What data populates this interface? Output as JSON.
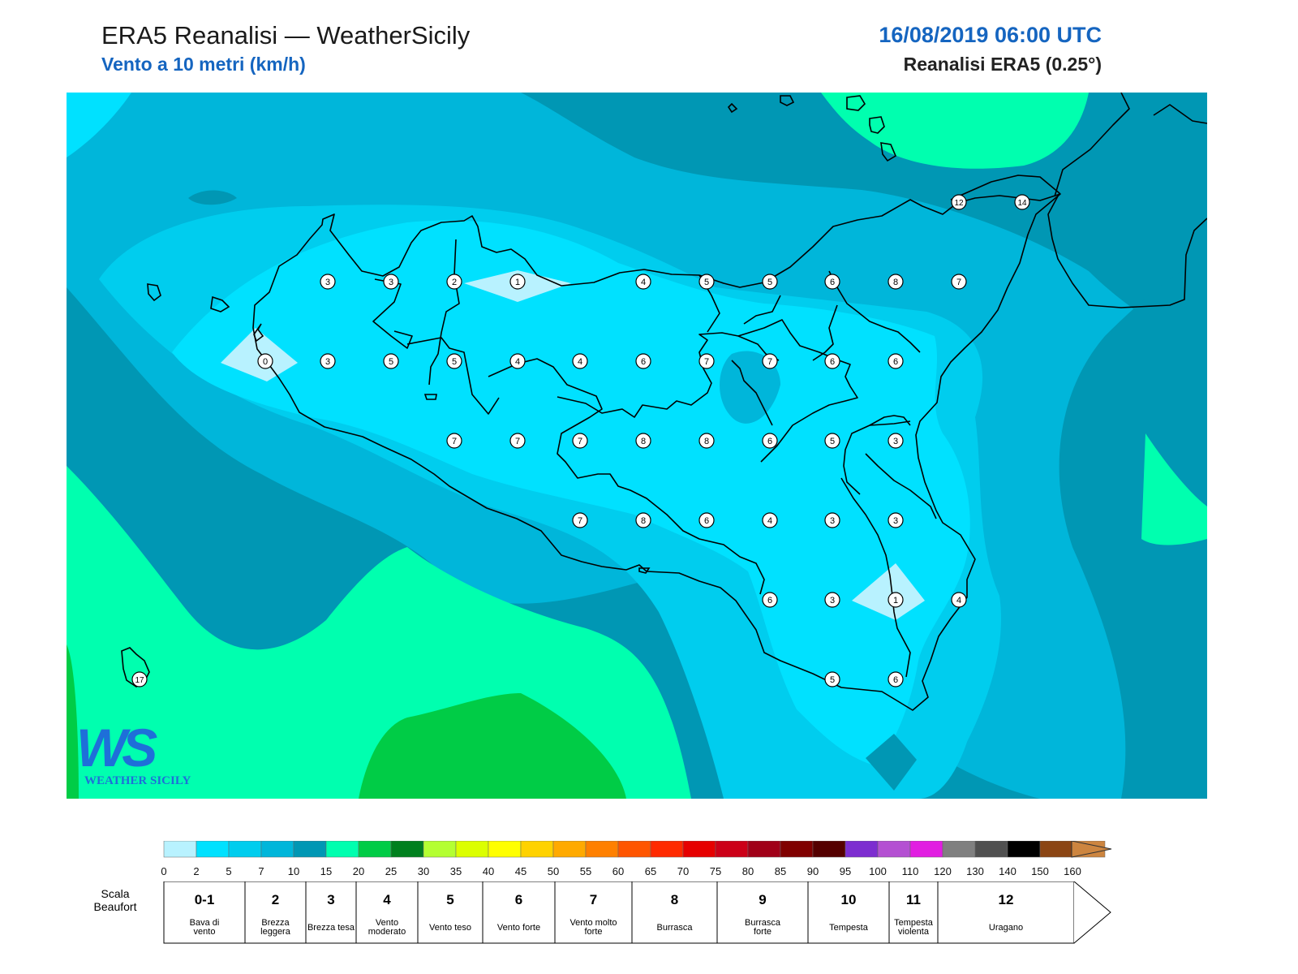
{
  "header": {
    "title": "ERA5 Reanalisi — WeatherSicily",
    "subtitle": "Vento a 10 metri (km/h)",
    "datetime": "16/08/2019 06:00 UTC",
    "dataset": "Reanalisi ERA5 (0.25°)"
  },
  "logo": {
    "letters": "WS",
    "text": "WEATHER SICILY"
  },
  "colors": {
    "c0_2": "#b8f2ff",
    "c2_5": "#00e1ff",
    "c5_7": "#00cdee",
    "c7_10": "#00b6da",
    "c10_15": "#0097b4",
    "c15_20": "#00ffaf",
    "c20_25": "#00cc46",
    "c25_30": "#00801e"
  },
  "colorbar": {
    "ticks": [
      "0",
      "2",
      "5",
      "7",
      "10",
      "15",
      "20",
      "25",
      "30",
      "35",
      "40",
      "45",
      "50",
      "55",
      "60",
      "65",
      "70",
      "75",
      "80",
      "85",
      "90",
      "95",
      "100",
      "110",
      "120",
      "130",
      "140",
      "150",
      "160"
    ],
    "colors": [
      "#b8f2ff",
      "#00e1ff",
      "#00cdee",
      "#00b6da",
      "#0097b4",
      "#00ffaf",
      "#00cc46",
      "#00801e",
      "#b4ff32",
      "#dcff00",
      "#ffff00",
      "#ffd200",
      "#ffaa00",
      "#ff8000",
      "#ff5500",
      "#ff2a00",
      "#e60000",
      "#cc0018",
      "#a00018",
      "#800000",
      "#550000",
      "#7d2dd0",
      "#b450d2",
      "#e11ee1",
      "#808080",
      "#505050",
      "#000000",
      "#8b4513",
      "#cd853f"
    ]
  },
  "beaufort": {
    "label": "Scala Beaufort",
    "classes": [
      {
        "num": "0-1",
        "desc": "Bava di vento"
      },
      {
        "num": "2",
        "desc": "Brezza leggera"
      },
      {
        "num": "3",
        "desc": "Brezza tesa"
      },
      {
        "num": "4",
        "desc": "Vento moderato"
      },
      {
        "num": "5",
        "desc": "Vento teso"
      },
      {
        "num": "6",
        "desc": "Vento forte"
      },
      {
        "num": "7",
        "desc": "Vento molto forte"
      },
      {
        "num": "8",
        "desc": "Burrasca"
      },
      {
        "num": "9",
        "desc": "Burrasca forte"
      },
      {
        "num": "10",
        "desc": "Tempesta"
      },
      {
        "num": "11",
        "desc": "Tempesta violenta"
      },
      {
        "num": "12",
        "desc": "Uragano"
      }
    ]
  },
  "wind_values_kmh": [
    {
      "label": "3"
    },
    {
      "label": "3"
    },
    {
      "label": "2"
    },
    {
      "label": "1"
    },
    {
      "label": "4"
    },
    {
      "label": "5"
    },
    {
      "label": "5"
    },
    {
      "label": "6"
    },
    {
      "label": "8"
    },
    {
      "label": "7"
    },
    {
      "label": "0"
    },
    {
      "label": "3"
    },
    {
      "label": "5"
    },
    {
      "label": "5"
    },
    {
      "label": "4"
    },
    {
      "label": "4"
    },
    {
      "label": "6"
    },
    {
      "label": "7"
    },
    {
      "label": "7"
    },
    {
      "label": "6"
    },
    {
      "label": "6"
    },
    {
      "label": "7"
    },
    {
      "label": "7"
    },
    {
      "label": "7"
    },
    {
      "label": "8"
    },
    {
      "label": "8"
    },
    {
      "label": "6"
    },
    {
      "label": "5"
    },
    {
      "label": "3"
    },
    {
      "label": "7"
    },
    {
      "label": "8"
    },
    {
      "label": "6"
    },
    {
      "label": "4"
    },
    {
      "label": "3"
    },
    {
      "label": "3"
    },
    {
      "label": "6"
    },
    {
      "label": "3"
    },
    {
      "label": "1"
    },
    {
      "label": "4"
    },
    {
      "label": "5"
    },
    {
      "label": "6"
    },
    {
      "label": "12"
    },
    {
      "label": "14"
    },
    {
      "label": "17"
    }
  ]
}
